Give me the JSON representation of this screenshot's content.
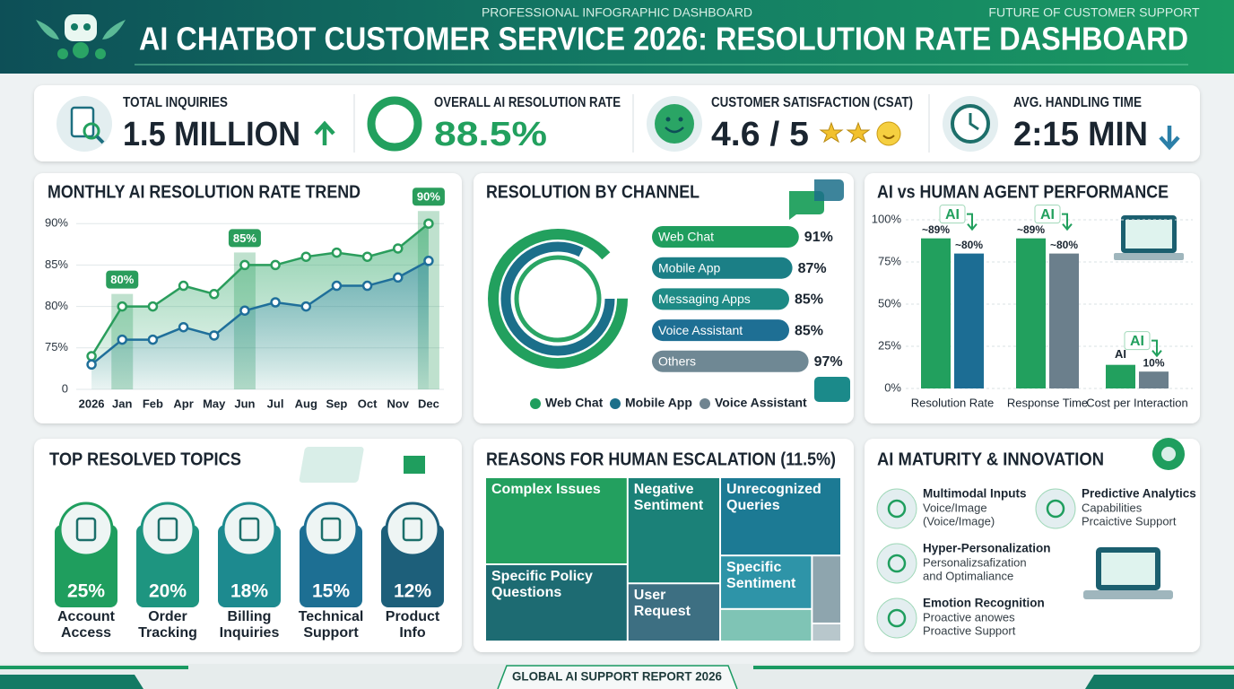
{
  "header": {
    "kicker": "PROFESSIONAL INFOGRAPHIC DASHBOARD",
    "title": "AI CHATBOT CUSTOMER SERVICE 2026: RESOLUTION RATE DASHBOARD",
    "tagline": "FUTURE OF CUSTOMER SUPPORT"
  },
  "kpis": [
    {
      "label": "TOTAL INQUIRIES",
      "value": "1.5 MILLION"
    },
    {
      "label": "OVERALL AI RESOLUTION RATE",
      "value": "88.5%"
    },
    {
      "label": "CUSTOMER SATISFACTION (CSAT)",
      "value": "4.6 / 5"
    },
    {
      "label": "AVG. HANDLING TIME",
      "value": "2:15 MIN"
    }
  ],
  "chart_data": [
    {
      "type": "line",
      "title": "MONTHLY AI RESOLUTION RATE TREND",
      "categories": [
        "2026",
        "Jan",
        "Feb",
        "Apr",
        "May",
        "Jun",
        "Jul",
        "Aug",
        "Sep",
        "Oct",
        "Nov",
        "Dec"
      ],
      "series": [
        {
          "color": "#2a9d5c",
          "values": [
            74,
            80,
            80,
            82.5,
            81.5,
            85,
            85,
            86,
            86.5,
            86,
            87,
            90
          ],
          "value_labels": [
            null,
            "80%",
            null,
            null,
            null,
            "85%",
            null,
            null,
            null,
            null,
            null,
            "90%"
          ]
        },
        {
          "color": "#1f6f9a",
          "values": [
            73,
            76,
            76,
            77.5,
            76.5,
            79.5,
            80.5,
            80,
            82.5,
            82.5,
            83.5,
            85.5
          ]
        }
      ],
      "ylim": [
        70,
        91
      ],
      "axis_break": true,
      "yticks": [
        {
          "value": 0,
          "label": "0"
        },
        {
          "value": 75,
          "label": "75%"
        },
        {
          "value": 80,
          "label": "80%"
        },
        {
          "value": 85,
          "label": "85%"
        },
        {
          "value": 90,
          "label": "90%"
        }
      ],
      "grid": true
    },
    {
      "type": "hbar",
      "title": "RESOLUTION BY CHANNEL",
      "categories": [
        "Web Chat",
        "Mobile App",
        "Messaging Apps",
        "Voice Assistant",
        "Others"
      ],
      "values": [
        91,
        87,
        85,
        85,
        97
      ],
      "value_labels": [
        "91%",
        "87%",
        "85%",
        "85%",
        "97%"
      ],
      "colors": [
        "#1f9e5e",
        "#1b7f86",
        "#1d8a85",
        "#1e6f94",
        "#6f8894"
      ],
      "xlim": [
        0,
        100
      ],
      "legend": [
        {
          "name": "Web Chat",
          "color": "#1f9e5e"
        },
        {
          "name": "Mobile App",
          "color": "#1b6f8a"
        },
        {
          "name": "Voice Assistant",
          "color": "#6f8490"
        }
      ]
    },
    {
      "type": "grouped_bar",
      "title": "AI vs HUMAN AGENT PERFORMANCE",
      "categories": [
        "Resolution Rate",
        "Response Time",
        "Cost per Interaction"
      ],
      "series": [
        {
          "color": "#22a05e",
          "values": [
            89,
            89,
            14
          ],
          "value_labels": [
            "~89%",
            "~89%",
            null
          ]
        },
        {
          "colors": [
            "#1c6d94",
            "#6b7f8c",
            "#6b7f8c"
          ],
          "values": [
            80,
            80,
            10
          ],
          "value_labels": [
            "~80%",
            "~80%",
            "10%"
          ]
        }
      ],
      "annotations": [
        "AI",
        "AI",
        "AI",
        "AI"
      ],
      "ylim": [
        0,
        100
      ],
      "yticks": [
        {
          "value": 0,
          "label": "0%"
        },
        {
          "value": 25,
          "label": "25%"
        },
        {
          "value": 50,
          "label": "50%"
        },
        {
          "value": 75,
          "label": "75%"
        },
        {
          "value": 100,
          "label": "100%"
        }
      ],
      "grid": true
    },
    {
      "type": "treemap",
      "title": "REASONS FOR HUMAN ESCALATION (11.5%)",
      "categories": [
        "Complex Issues",
        "Specific Policy Questions",
        "Negative Sentiment",
        "User Request",
        "Unrecognized Queries",
        "Specific Sentiment",
        null,
        null,
        null
      ],
      "values": [
        21.2,
        18.8,
        16.8,
        9.2,
        16.2,
        8.4,
        5.1,
        3.4,
        0.9
      ],
      "colors": [
        "#23a05f",
        "#1d6b72",
        "#1b8178",
        "#3d6f82",
        "#1c7a94",
        "#2e94a8",
        "#7fc4b5",
        "#8ea5ae",
        "#b8c7cc"
      ]
    }
  ],
  "topics": {
    "title": "TOP RESOLVED TOPICS",
    "items": [
      {
        "value": "25%",
        "label": "Account Access"
      },
      {
        "value": "20%",
        "label": "Order Tracking"
      },
      {
        "value": "18%",
        "label": "Billing Inquiries"
      },
      {
        "value": "15%",
        "label": "Technical Support"
      },
      {
        "value": "12%",
        "label": "Product Info"
      }
    ]
  },
  "innovation": {
    "title": "AI MATURITY & INNOVATION",
    "items": [
      {
        "title": "Multimodal Inputs",
        "lines": [
          "Voice/Image",
          "(Voice/Image)"
        ]
      },
      {
        "title": "Predictive Analytics",
        "lines": [
          "Capabilities",
          "Prcaictive Support"
        ]
      },
      {
        "title": "Hyper-Personalization",
        "lines": [
          "Personalizsafization",
          "and Optimaliance"
        ]
      },
      {
        "title": "Emotion Recognition",
        "lines": [
          "Proactive anowes",
          "Proactive Support"
        ]
      }
    ]
  },
  "footer": "GLOBAL AI SUPPORT REPORT 2026"
}
